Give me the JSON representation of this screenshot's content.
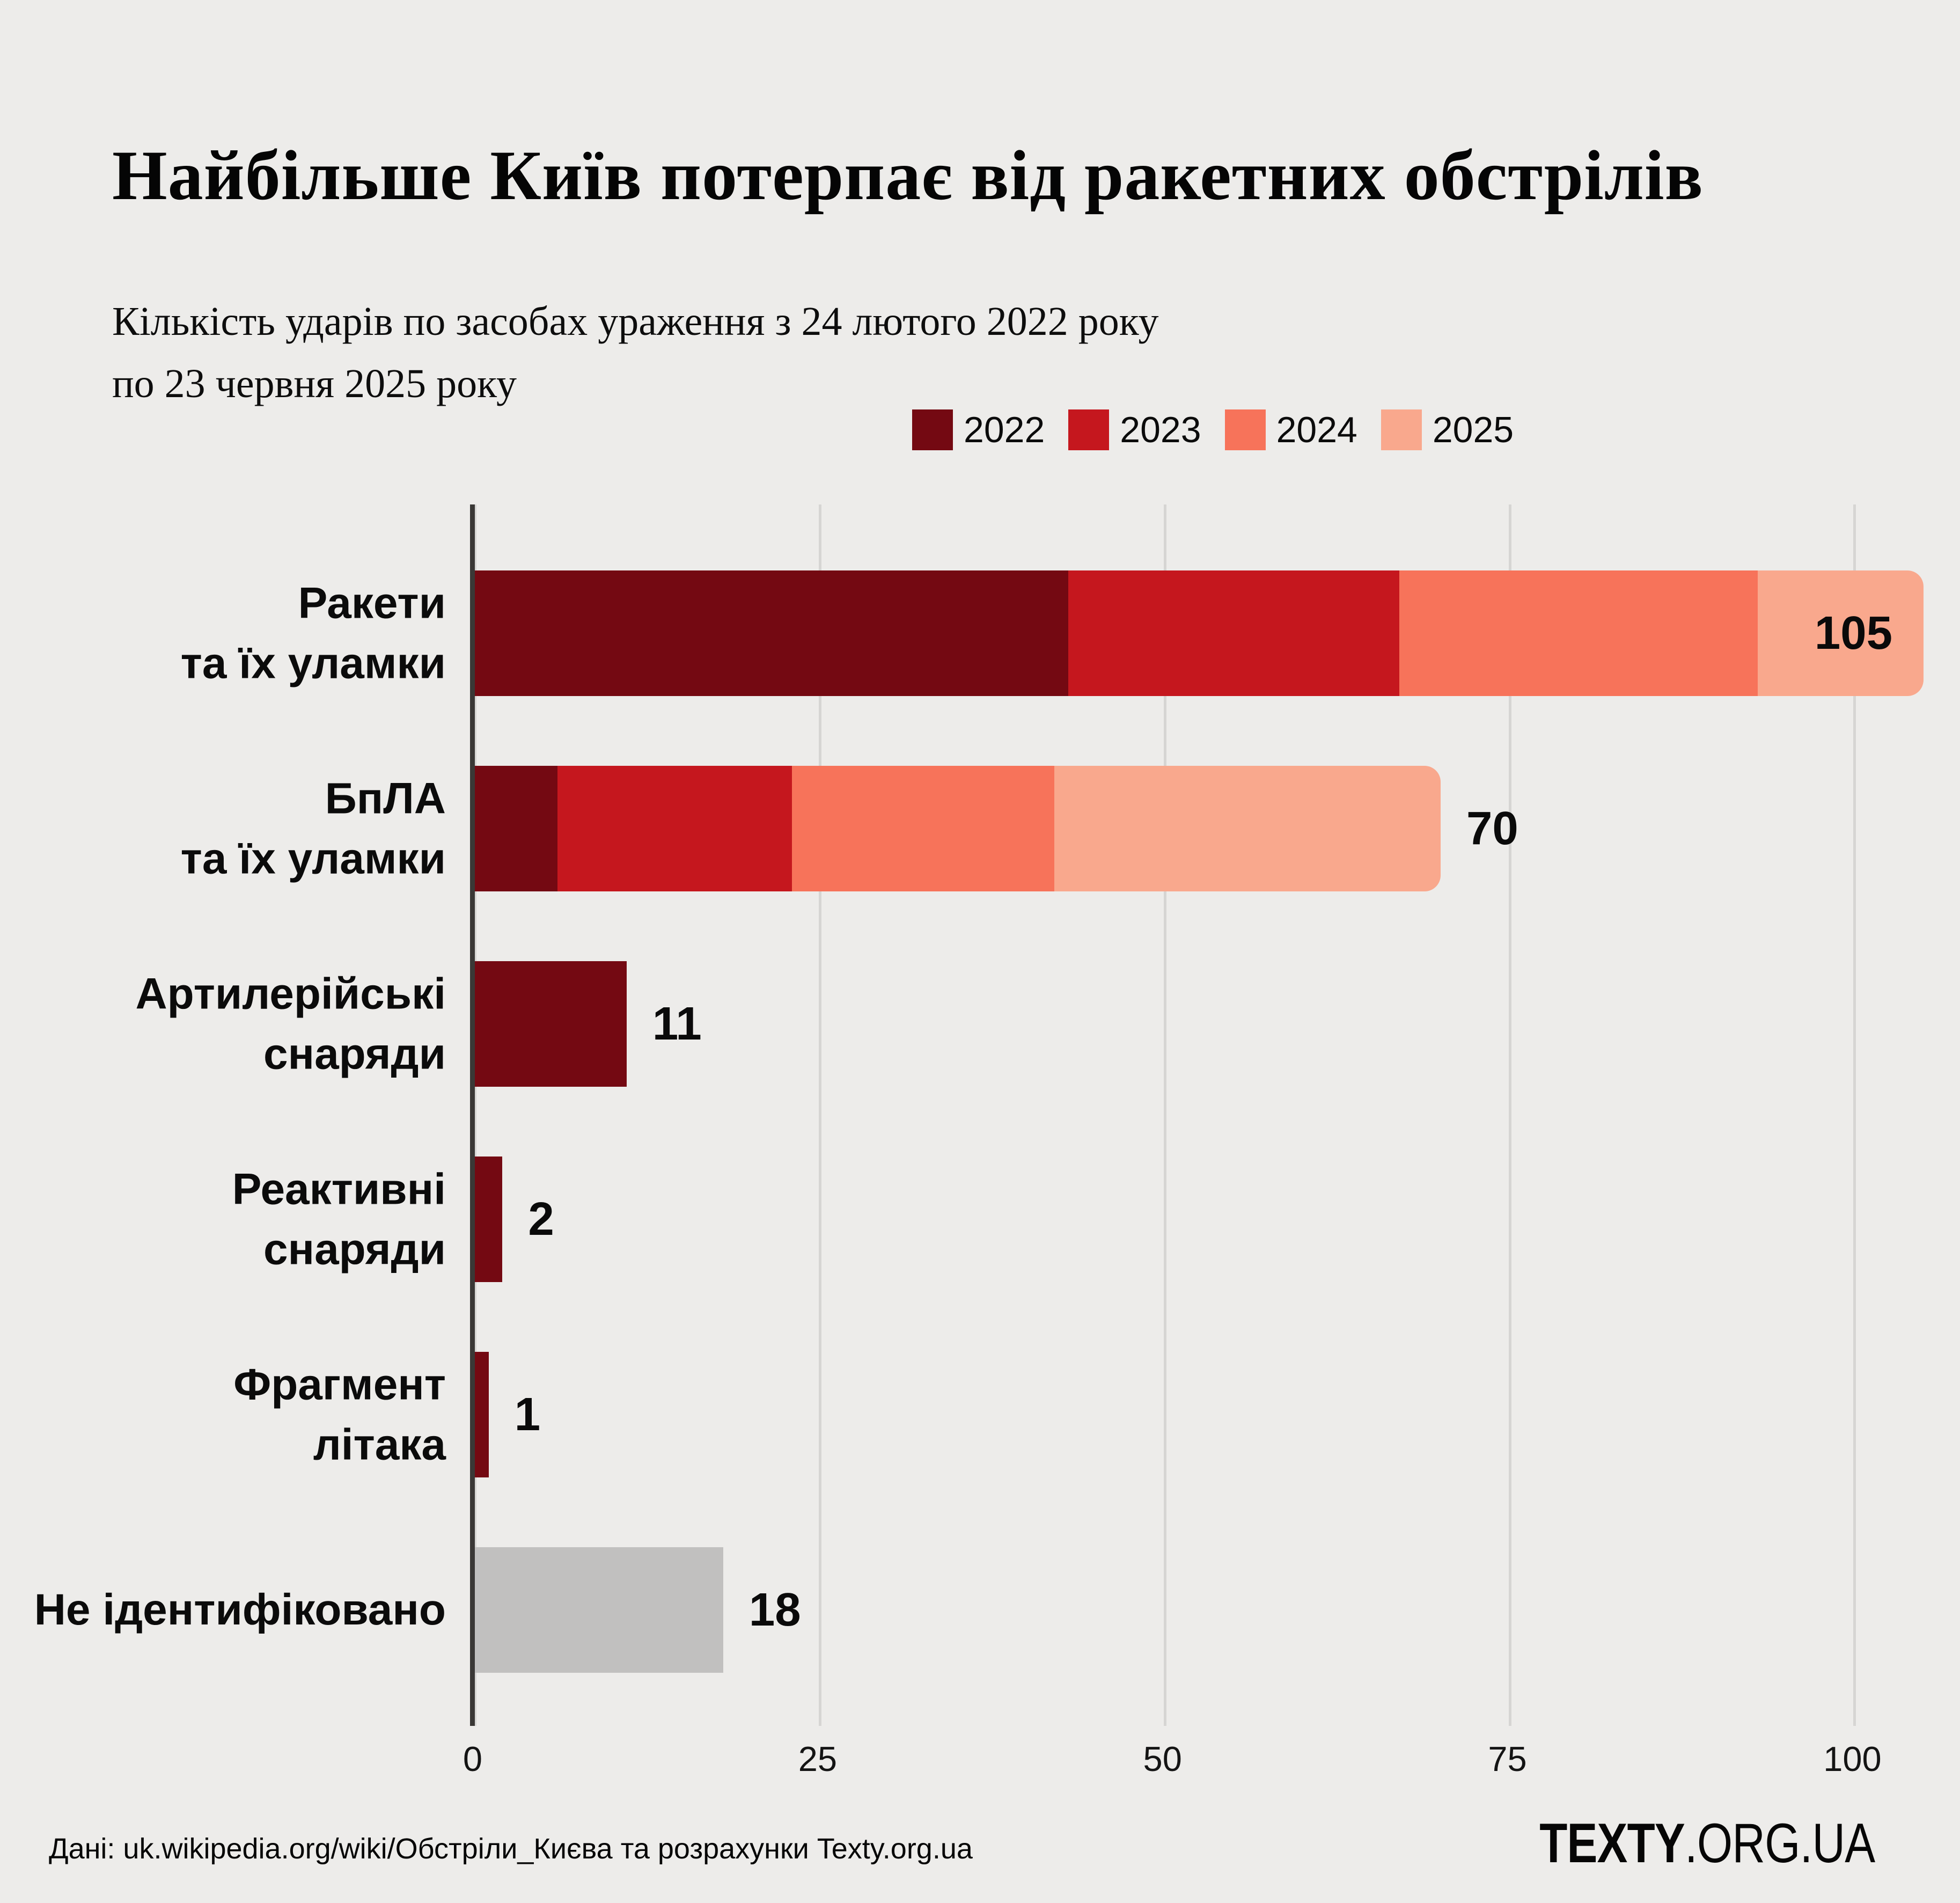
{
  "page": {
    "background": "#edecea"
  },
  "header": {
    "title": "Найбільше Київ потерпає від ракетних обстрілів",
    "subtitle_line1": "Кількість ударів по засобах ураження з 24 лютого 2022 року",
    "subtitle_line2": "по 23 червня 2025 року"
  },
  "legend": {
    "items": [
      {
        "label": "2022",
        "color": "#740912"
      },
      {
        "label": "2023",
        "color": "#c5171e"
      },
      {
        "label": "2024",
        "color": "#f7735a"
      },
      {
        "label": "2025",
        "color": "#f9a88d"
      }
    ]
  },
  "chart_data": {
    "type": "bar",
    "orientation": "horizontal",
    "title": "Найбільше Київ потерпає від ракетних обстрілів",
    "xlabel": "",
    "ylabel": "",
    "grid": true,
    "legend_position": "top-right",
    "x_axis": {
      "ticks": [
        0,
        25,
        50,
        75,
        100
      ],
      "max": 105
    },
    "series_years": [
      "2022",
      "2023",
      "2024",
      "2025"
    ],
    "colors": {
      "2022": "#740912",
      "2023": "#c5171e",
      "2024": "#f7735a",
      "2025": "#f9a88d",
      "unidentified": "#c1c0bf"
    },
    "rows": [
      {
        "label_lines": [
          "Ракети",
          "та їх уламки"
        ],
        "total": 105,
        "segments": [
          {
            "year": "2022",
            "value": 43
          },
          {
            "year": "2023",
            "value": 24
          },
          {
            "year": "2024",
            "value": 26
          },
          {
            "year": "2025",
            "value": 12
          }
        ],
        "value_inside": true,
        "rounded_end": true
      },
      {
        "label_lines": [
          "БпЛА",
          "та їх уламки"
        ],
        "total": 70,
        "segments": [
          {
            "year": "2022",
            "value": 6
          },
          {
            "year": "2023",
            "value": 17
          },
          {
            "year": "2024",
            "value": 19
          },
          {
            "year": "2025",
            "value": 28
          }
        ],
        "value_inside": false,
        "rounded_end": true
      },
      {
        "label_lines": [
          "Артилерійські",
          "снаряди"
        ],
        "total": 11,
        "segments": [
          {
            "year": "2022",
            "value": 11
          }
        ],
        "value_inside": false,
        "rounded_end": false
      },
      {
        "label_lines": [
          "Реактивні",
          "снаряди"
        ],
        "total": 2,
        "segments": [
          {
            "year": "2022",
            "value": 2
          }
        ],
        "value_inside": false,
        "rounded_end": false
      },
      {
        "label_lines": [
          "Фрагмент",
          "літака"
        ],
        "total": 1,
        "segments": [
          {
            "year": "2022",
            "value": 1
          }
        ],
        "value_inside": false,
        "rounded_end": false
      },
      {
        "label_lines": [
          "Не ідентифіковано"
        ],
        "total": 18,
        "segments": [
          {
            "year": "unidentified",
            "value": 18
          }
        ],
        "value_inside": false,
        "rounded_end": false
      }
    ]
  },
  "footer": {
    "source": "Дані: uk.wikipedia.org/wiki/Обстріли_Києва та розрахунки Texty.org.ua",
    "logo_bold": "TEXTY",
    "logo_rest": ".ORG.UA"
  }
}
